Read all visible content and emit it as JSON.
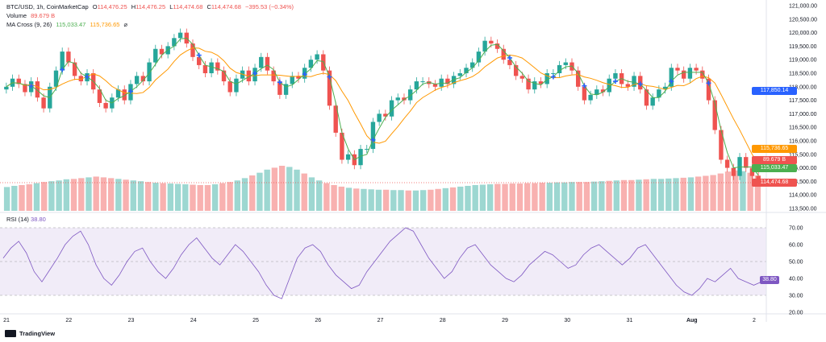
{
  "legend": {
    "symbol": "BTC/USD, 1h, CoinMarketCap",
    "o_label": "O",
    "o_value": "114,476.25",
    "h_label": "H",
    "h_value": "114,476.25",
    "l_label": "L",
    "l_value": "114,474.68",
    "c_label": "C",
    "c_value": "114,474.68",
    "change": "−395.53 (−0.34%)",
    "volume_label": "Volume",
    "volume_value": "89.679 B",
    "ma_label": "MA Cross (9, 26)",
    "ma_fast": "115,033.47",
    "ma_slow": "115,736.65"
  },
  "rsi": {
    "label": "RSI (14)",
    "value": "38.80"
  },
  "price_axis": [
    "121,000.00",
    "120,500.00",
    "120,000.00",
    "119,500.00",
    "119,000.00",
    "118,500.00",
    "118,000.00",
    "117,500.00",
    "117,000.00",
    "116,500.00",
    "116,000.00",
    "115,500.00",
    "115,000.00",
    "114,500.00",
    "114,000.00",
    "113,500.00"
  ],
  "rsi_axis": [
    "70.00",
    "60.00",
    "50.00",
    "40.00",
    "30.00",
    "20.00"
  ],
  "time_axis": [
    "21",
    "22",
    "23",
    "24",
    "25",
    "26",
    "27",
    "28",
    "29",
    "30",
    "31",
    "Aug",
    "2"
  ],
  "price_tags": {
    "ma_cross_level": "117,850.14",
    "ma_slow": "115,736.65",
    "volume": "89.679 B",
    "ma_fast": "115,033.47",
    "last_price": "114,474.68",
    "rsi": "38.80"
  },
  "colors": {
    "up": "#26a69a",
    "down": "#ef5350",
    "ma_fast": "#4caf50",
    "ma_slow": "#ff9800",
    "cross": "#2962ff",
    "rsi": "#7e57c2"
  },
  "chart_data": {
    "type": "candlestick",
    "ylim": [
      113500,
      121000
    ],
    "closes": [
      118000,
      118300,
      118100,
      117800,
      118200,
      117600,
      117200,
      118000,
      118600,
      119300,
      118900,
      118400,
      118200,
      118500,
      117900,
      117400,
      117200,
      117600,
      117900,
      117500,
      118100,
      118400,
      118200,
      118900,
      119400,
      119200,
      119500,
      119800,
      120000,
      119600,
      119100,
      118800,
      118500,
      118900,
      118600,
      118200,
      117800,
      118300,
      118600,
      118200,
      118700,
      119100,
      118600,
      118200,
      117700,
      118100,
      118400,
      118300,
      118700,
      119000,
      119200,
      118600,
      117300,
      116300,
      115300,
      115500,
      115100,
      115700,
      115700,
      116700,
      117000,
      116900,
      117500,
      117600,
      117500,
      117900,
      118200,
      118200,
      118100,
      118000,
      118300,
      118100,
      118400,
      118500,
      118700,
      118900,
      119300,
      119700,
      119600,
      119400,
      119000,
      118800,
      118400,
      118300,
      117900,
      118200,
      118100,
      118500,
      118500,
      118800,
      118900,
      118600,
      118000,
      117500,
      117700,
      117900,
      117800,
      118300,
      118500,
      118100,
      118000,
      118400,
      117900,
      117300,
      117600,
      117900,
      118000,
      118700,
      118600,
      118300,
      118700,
      118600,
      118300,
      117500,
      116400,
      115300,
      115000,
      114700,
      115400,
      115000,
      114700,
      114475
    ],
    "volume_fraction": [
      0.45,
      0.48,
      0.5,
      0.52,
      0.55,
      0.58,
      0.6,
      0.62,
      0.65,
      0.66,
      0.68,
      0.7,
      0.72,
      0.7,
      0.68,
      0.66,
      0.64,
      0.62,
      0.6,
      0.58,
      0.56,
      0.55,
      0.54,
      0.53,
      0.52,
      0.51,
      0.5,
      0.5,
      0.52,
      0.55,
      0.58,
      0.62,
      0.68,
      0.75,
      0.82,
      0.9,
      0.95,
      1.0,
      0.97,
      0.9,
      0.8,
      0.7,
      0.62,
      0.55,
      0.5,
      0.46,
      0.43,
      0.41,
      0.4,
      0.39,
      0.38,
      0.38,
      0.37,
      0.37,
      0.36,
      0.36,
      0.37,
      0.38,
      0.4,
      0.42,
      0.44,
      0.46,
      0.48,
      0.5,
      0.51,
      0.52,
      0.53,
      0.53,
      0.54,
      0.54,
      0.55,
      0.55,
      0.56,
      0.56,
      0.57,
      0.57,
      0.58,
      0.58,
      0.58,
      0.59,
      0.6,
      0.61,
      0.62,
      0.63,
      0.63,
      0.64,
      0.65,
      0.66,
      0.66,
      0.67,
      0.68,
      0.69,
      0.7,
      0.72,
      0.74,
      0.76,
      0.8,
      0.85,
      0.88,
      0.86,
      0.82,
      0.75
    ],
    "rsi_values": [
      52,
      58,
      62,
      55,
      44,
      38,
      45,
      52,
      60,
      65,
      68,
      60,
      48,
      40,
      36,
      42,
      50,
      56,
      58,
      50,
      44,
      40,
      46,
      54,
      60,
      64,
      58,
      52,
      48,
      54,
      60,
      56,
      50,
      44,
      36,
      30,
      28,
      40,
      52,
      58,
      60,
      56,
      48,
      42,
      38,
      34,
      36,
      44,
      50,
      56,
      62,
      66,
      70,
      68,
      60,
      52,
      46,
      40,
      44,
      52,
      58,
      60,
      54,
      48,
      44,
      40,
      38,
      42,
      48,
      52,
      56,
      54,
      50,
      46,
      48,
      54,
      58,
      60,
      56,
      52,
      48,
      52,
      58,
      60,
      54,
      48,
      42,
      36,
      32,
      30,
      34,
      40,
      38,
      42,
      46,
      40,
      38,
      36,
      38
    ]
  }
}
